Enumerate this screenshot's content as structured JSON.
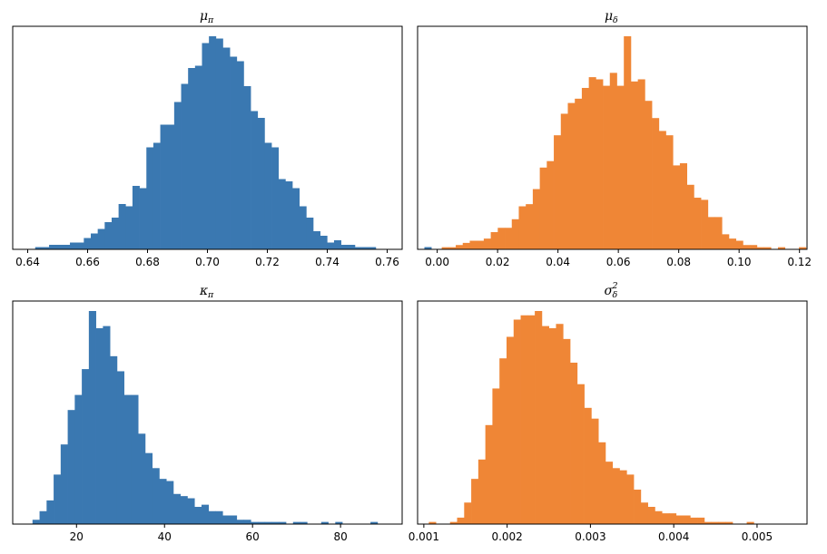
{
  "chart_data": [
    {
      "type": "histogram",
      "title": "μπ",
      "title_symbol": "μ",
      "title_sub": "π",
      "color": "#3a78b1",
      "xlim": [
        0.635,
        0.765
      ],
      "xticks": [
        0.64,
        0.66,
        0.68,
        0.7,
        0.72,
        0.74,
        0.76
      ],
      "xtick_labels": [
        "0.64",
        "0.66",
        "0.68",
        "0.70",
        "0.72",
        "0.74",
        "0.76"
      ],
      "bin_start": 0.6425,
      "bin_width": 0.00232,
      "counts": [
        1,
        1,
        2,
        2,
        2,
        3,
        3,
        5,
        7,
        9,
        12,
        14,
        20,
        19,
        28,
        27,
        45,
        47,
        55,
        55,
        65,
        73,
        80,
        81,
        91,
        94,
        93,
        89,
        85,
        83,
        72,
        61,
        58,
        47,
        45,
        31,
        30,
        27,
        19,
        14,
        8,
        6,
        3,
        4,
        2,
        2,
        1,
        1,
        1,
        0,
        0,
        0,
        0,
        0,
        0,
        0,
        1
      ]
    },
    {
      "type": "histogram",
      "title": "μδ",
      "title_symbol": "μ",
      "title_sub": "δ",
      "color": "#ef8636",
      "xlim": [
        -0.0065,
        0.1225
      ],
      "xticks": [
        0.0,
        0.02,
        0.04,
        0.06,
        0.08,
        0.1,
        0.12
      ],
      "xtick_labels": [
        "0.00",
        "0.02",
        "0.04",
        "0.06",
        "0.08",
        "0.10",
        "0.12"
      ],
      "bin_start": 0.0015,
      "bin_width": 0.00232,
      "counts": [
        1,
        1,
        2,
        3,
        4,
        4,
        5,
        8,
        10,
        10,
        14,
        20,
        21,
        28,
        38,
        41,
        53,
        63,
        68,
        70,
        75,
        80,
        79,
        76,
        82,
        76,
        99,
        78,
        79,
        69,
        61,
        55,
        53,
        39,
        40,
        30,
        24,
        23,
        15,
        15,
        7,
        5,
        4,
        2,
        2,
        1,
        1,
        0,
        1,
        0,
        0,
        1
      ]
    },
    {
      "type": "histogram",
      "title": "κπ",
      "title_symbol": "κ",
      "title_sub": "π",
      "color": "#3a78b1",
      "xlim": [
        5.5,
        94.0
      ],
      "xticks": [
        20,
        40,
        60,
        80
      ],
      "xtick_labels": [
        "20",
        "40",
        "60",
        "80"
      ],
      "bin_start": 10.0,
      "bin_width": 1.6,
      "counts": [
        2,
        6,
        11,
        23,
        37,
        53,
        60,
        72,
        99,
        91,
        92,
        78,
        71,
        60,
        60,
        42,
        33,
        26,
        21,
        20,
        14,
        13,
        12,
        8,
        9,
        6,
        6,
        4,
        4,
        2,
        2,
        1,
        1,
        1,
        1,
        1,
        0,
        1,
        1,
        0,
        0,
        1,
        0,
        1,
        0,
        0,
        0,
        0,
        1
      ]
    },
    {
      "type": "histogram",
      "title": "σδ2",
      "title_symbol": "σ",
      "title_sub": "δ",
      "title_sup": "2",
      "color": "#ef8636",
      "xlim": [
        0.000925,
        0.0056
      ],
      "xticks": [
        0.001,
        0.002,
        0.003,
        0.004,
        0.005
      ],
      "xtick_labels": [
        "0.001",
        "0.002",
        "0.003",
        "0.004",
        "0.005"
      ],
      "bin_start": 0.00106,
      "bin_width": 8.48e-05,
      "counts": [
        1,
        0,
        0,
        1,
        3,
        10,
        21,
        30,
        46,
        63,
        77,
        87,
        95,
        97,
        97,
        99,
        92,
        91,
        93,
        86,
        75,
        65,
        54,
        49,
        38,
        29,
        26,
        25,
        23,
        16,
        10,
        8,
        6,
        5,
        5,
        4,
        4,
        3,
        3,
        1,
        1,
        1,
        1,
        0,
        0,
        1,
        0,
        0,
        0,
        0,
        0,
        0
      ]
    }
  ]
}
